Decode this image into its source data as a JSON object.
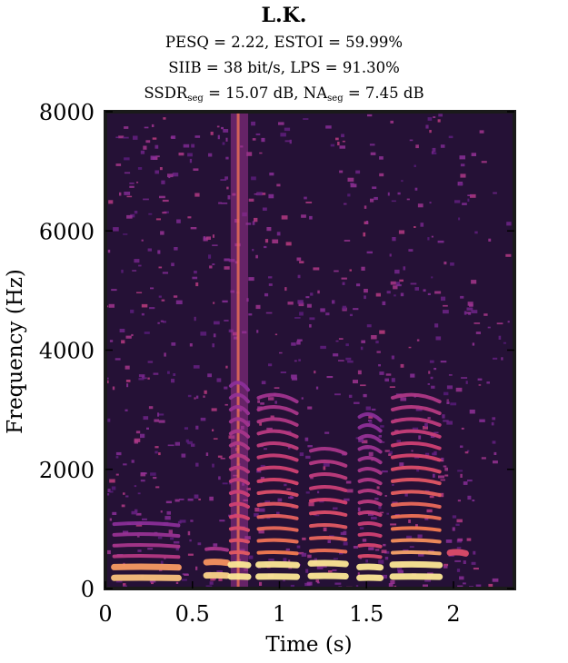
{
  "header": {
    "title": "L.K.",
    "line1": "PESQ = 2.22, ESTOI = 59.99%",
    "line2": "SIIB = 38 bit/s, LPS = 91.30%",
    "line3": {
      "a": "SSDR",
      "a_sub": "seg",
      "b": " = 15.07 dB, NA",
      "b_sub": "seg",
      "c": " = 7.45 dB"
    }
  },
  "chart_data": {
    "type": "heatmap",
    "title": "L.K.",
    "xlabel": "Time (s)",
    "ylabel": "Frequency (Hz)",
    "xlim": [
      0,
      2.35
    ],
    "ylim": [
      0,
      8000
    ],
    "xticks": [
      0,
      0.5,
      1,
      1.5,
      2
    ],
    "xtick_labels": [
      "0",
      "0.5",
      "1",
      "1.5",
      "2"
    ],
    "yticks": [
      0,
      2000,
      4000,
      6000,
      8000
    ],
    "ytick_labels": [
      "0",
      "2000",
      "4000",
      "6000",
      "8000"
    ],
    "colormap": "magma",
    "colors": {
      "background": "#251136",
      "low": "#4a1670",
      "mid": "#8c2f9a",
      "high": "#e8504a",
      "peak": "#fbe38e"
    },
    "voiced_segments": [
      {
        "t0": 0.05,
        "t1": 0.42,
        "f0": 180,
        "harmonics_max_hz": 1100,
        "strength": 0.75
      },
      {
        "t0": 0.58,
        "t1": 0.7,
        "f0": 220,
        "harmonics_max_hz": 800,
        "strength": 0.8
      },
      {
        "t0": 0.72,
        "t1": 0.82,
        "f0": 200,
        "harmonics_max_hz": 8000,
        "strength": 0.85
      },
      {
        "t0": 0.88,
        "t1": 1.1,
        "f0": 200,
        "harmonics_max_hz": 3200,
        "strength": 0.95
      },
      {
        "t0": 1.18,
        "t1": 1.38,
        "f0": 210,
        "harmonics_max_hz": 2400,
        "strength": 0.95
      },
      {
        "t0": 1.46,
        "t1": 1.58,
        "f0": 180,
        "harmonics_max_hz": 3000,
        "strength": 0.8
      },
      {
        "t0": 1.65,
        "t1": 1.92,
        "f0": 200,
        "harmonics_max_hz": 3300,
        "strength": 1.0
      },
      {
        "t0": 1.98,
        "t1": 2.07,
        "f0": 600,
        "harmonics_max_hz": 650,
        "strength": 0.7
      }
    ]
  }
}
